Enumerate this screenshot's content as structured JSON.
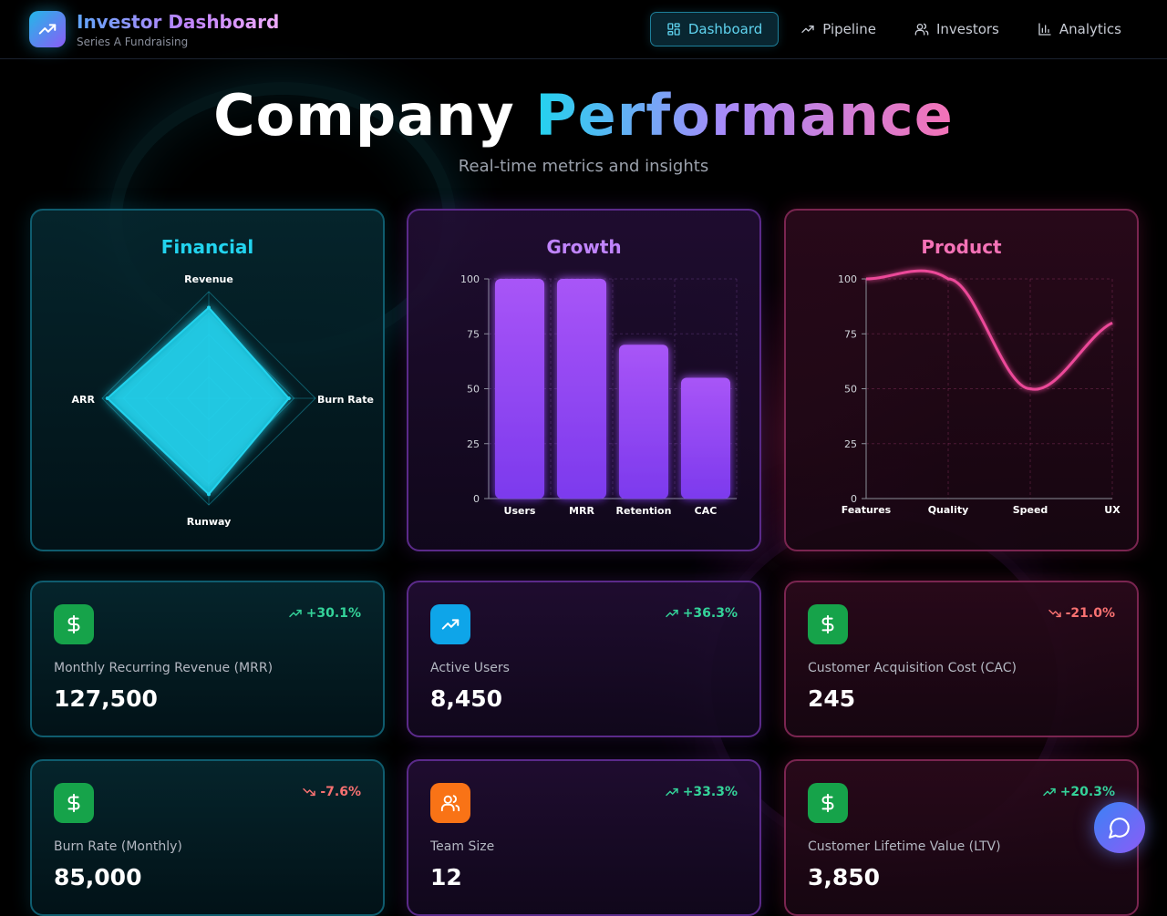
{
  "header": {
    "brand_title": "Investor Dashboard",
    "brand_subtitle": "Series A Fundraising",
    "nav": [
      {
        "label": "Dashboard",
        "icon": "grid-icon",
        "active": true
      },
      {
        "label": "Pipeline",
        "icon": "trending-up-icon",
        "active": false
      },
      {
        "label": "Investors",
        "icon": "users-icon",
        "active": false
      },
      {
        "label": "Analytics",
        "icon": "bar-chart-icon",
        "active": false
      }
    ]
  },
  "hero": {
    "title_plain": "Company",
    "title_accent": "Performance",
    "subtitle": "Real-time metrics and insights"
  },
  "colors": {
    "cyan": "#22d3ee",
    "purple": "#a855f7",
    "pink": "#ec4899",
    "positive": "#34d399",
    "negative": "#f87171"
  },
  "chart_data": [
    {
      "type": "radar",
      "title": "Financial",
      "categories": [
        "Revenue",
        "Burn Rate",
        "Runway",
        "ARR"
      ],
      "values": [
        85,
        75,
        90,
        95
      ],
      "range": [
        0,
        100
      ]
    },
    {
      "type": "bar",
      "title": "Growth",
      "categories": [
        "Users",
        "MRR",
        "Retention",
        "CAC"
      ],
      "values": [
        100,
        100,
        70,
        55
      ],
      "ylim": [
        0,
        100
      ],
      "yticks": [
        0,
        25,
        50,
        75,
        100
      ],
      "grid": true
    },
    {
      "type": "line",
      "title": "Product",
      "categories": [
        "Features",
        "Quality",
        "Speed",
        "UX"
      ],
      "values": [
        100,
        100,
        50,
        80
      ],
      "ylim": [
        0,
        100
      ],
      "yticks": [
        0,
        25,
        50,
        75,
        100
      ],
      "grid": true
    }
  ],
  "metrics": [
    {
      "label": "Monthly Recurring Revenue (MRR)",
      "value": "127,500",
      "change": "+30.1%",
      "trend": "up",
      "icon": "dollar-icon",
      "icon_color": "#16a34a",
      "theme": "cyan"
    },
    {
      "label": "Active Users",
      "value": "8,450",
      "change": "+36.3%",
      "trend": "up",
      "icon": "trending-up-icon",
      "icon_color": "#0ea5e9",
      "theme": "purple"
    },
    {
      "label": "Customer Acquisition Cost (CAC)",
      "value": "245",
      "change": "-21.0%",
      "trend": "down",
      "icon": "dollar-icon",
      "icon_color": "#16a34a",
      "theme": "pink"
    },
    {
      "label": "Burn Rate (Monthly)",
      "value": "85,000",
      "change": "-7.6%",
      "trend": "down",
      "icon": "dollar-icon",
      "icon_color": "#16a34a",
      "theme": "cyan"
    },
    {
      "label": "Team Size",
      "value": "12",
      "change": "+33.3%",
      "trend": "up",
      "icon": "users-icon",
      "icon_color": "#f97316",
      "theme": "purple"
    },
    {
      "label": "Customer Lifetime Value (LTV)",
      "value": "3,850",
      "change": "+20.3%",
      "trend": "up",
      "icon": "dollar-icon",
      "icon_color": "#16a34a",
      "theme": "pink"
    }
  ],
  "chat": {
    "icon": "chat-bubble-icon"
  }
}
